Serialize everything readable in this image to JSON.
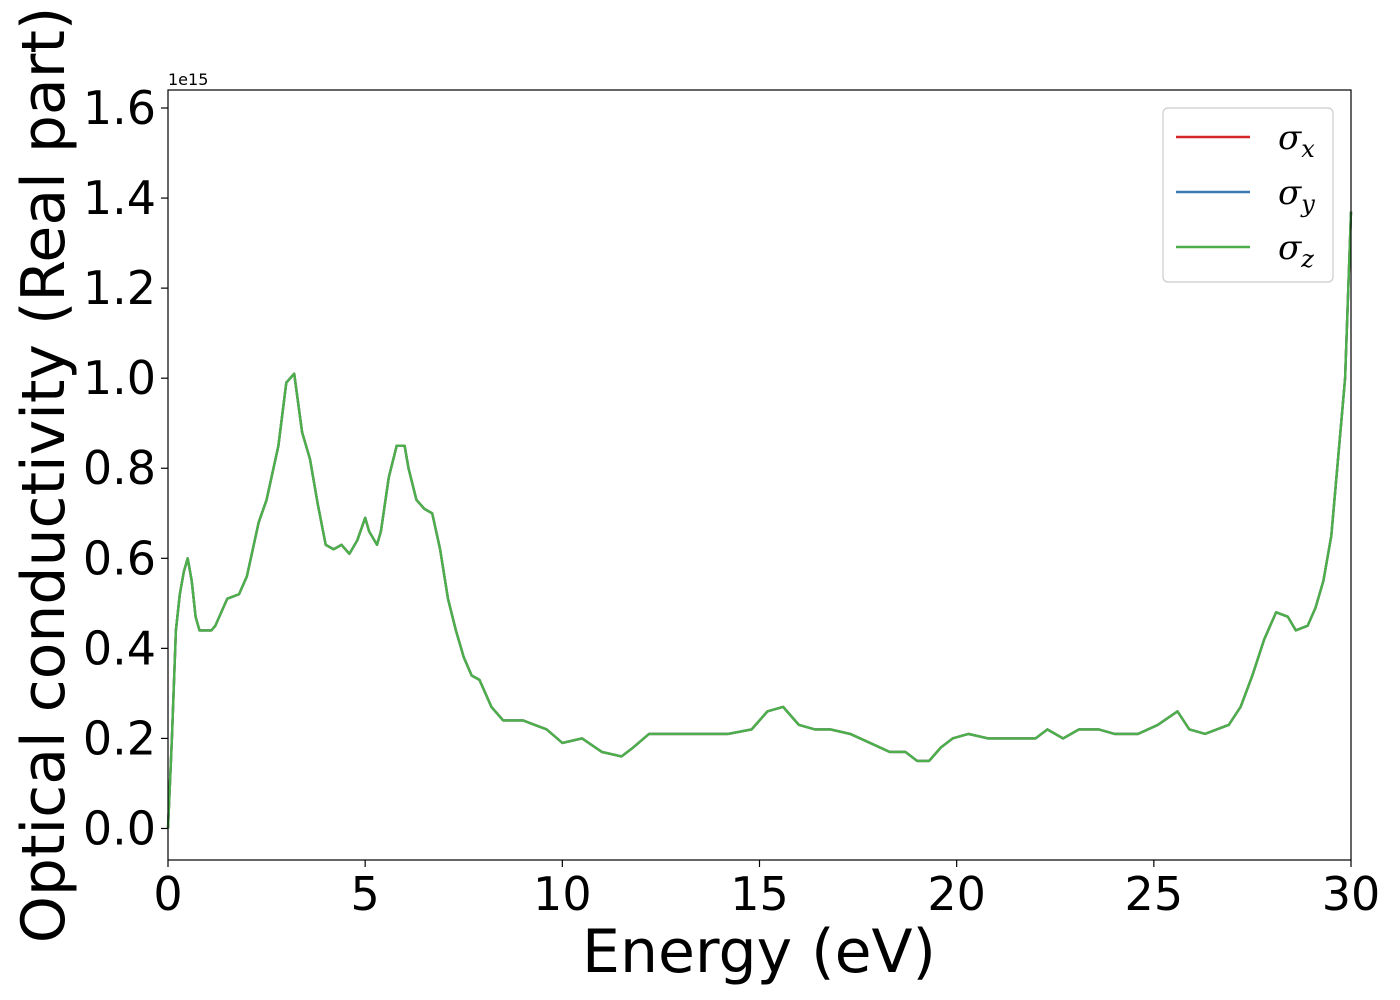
{
  "chart_data": {
    "type": "line",
    "xlabel": "Energy (eV)",
    "ylabel": "Optical conductivity (Real part)",
    "y_offset_text": "1e15",
    "xlim": [
      0,
      30
    ],
    "ylim": [
      -0.07,
      1.64
    ],
    "x_ticks": [
      0,
      5,
      10,
      15,
      20,
      25,
      30
    ],
    "y_ticks": [
      0.0,
      0.2,
      0.4,
      0.6,
      0.8,
      1.0,
      1.2,
      1.4,
      1.6
    ],
    "x_tick_labels": [
      "0",
      "5",
      "10",
      "15",
      "20",
      "25",
      "30"
    ],
    "y_tick_labels": [
      "0.0",
      "0.2",
      "0.4",
      "0.6",
      "0.8",
      "1.0",
      "1.2",
      "1.4",
      "1.6"
    ],
    "legend_position": "top-right",
    "grid": false,
    "x": [
      0.0,
      0.1,
      0.2,
      0.3,
      0.4,
      0.5,
      0.6,
      0.7,
      0.8,
      0.9,
      1.0,
      1.1,
      1.2,
      1.5,
      1.8,
      2.0,
      2.3,
      2.5,
      2.8,
      3.0,
      3.2,
      3.4,
      3.6,
      3.8,
      4.0,
      4.2,
      4.4,
      4.6,
      4.8,
      5.0,
      5.1,
      5.3,
      5.4,
      5.6,
      5.8,
      6.0,
      6.1,
      6.3,
      6.5,
      6.7,
      6.9,
      7.1,
      7.3,
      7.5,
      7.7,
      7.9,
      8.2,
      8.5,
      9.0,
      9.3,
      9.6,
      10.0,
      10.5,
      11.0,
      11.5,
      11.8,
      12.2,
      12.6,
      13.0,
      13.4,
      13.8,
      14.2,
      14.8,
      15.2,
      15.6,
      16.0,
      16.4,
      16.8,
      17.3,
      17.8,
      18.3,
      18.7,
      19.0,
      19.3,
      19.6,
      19.9,
      20.3,
      20.8,
      21.3,
      21.7,
      22.0,
      22.3,
      22.7,
      23.1,
      23.6,
      24.0,
      24.6,
      25.1,
      25.6,
      25.9,
      26.3,
      26.6,
      26.9,
      27.2,
      27.5,
      27.8,
      28.1,
      28.4,
      28.6,
      28.9,
      29.1,
      29.3,
      29.5,
      29.7,
      29.85,
      30.0
    ],
    "series": [
      {
        "name": "σx",
        "color": "#d62728",
        "values": [
          0.0,
          0.2,
          0.44,
          0.52,
          0.57,
          0.6,
          0.55,
          0.47,
          0.44,
          0.44,
          0.44,
          0.44,
          0.45,
          0.51,
          0.52,
          0.56,
          0.68,
          0.73,
          0.85,
          0.99,
          1.01,
          0.88,
          0.82,
          0.72,
          0.63,
          0.62,
          0.63,
          0.61,
          0.64,
          0.69,
          0.66,
          0.63,
          0.66,
          0.78,
          0.85,
          0.85,
          0.8,
          0.73,
          0.71,
          0.7,
          0.62,
          0.51,
          0.44,
          0.38,
          0.34,
          0.33,
          0.27,
          0.24,
          0.24,
          0.23,
          0.22,
          0.19,
          0.2,
          0.17,
          0.16,
          0.18,
          0.21,
          0.21,
          0.21,
          0.21,
          0.21,
          0.21,
          0.22,
          0.26,
          0.27,
          0.23,
          0.22,
          0.22,
          0.21,
          0.19,
          0.17,
          0.17,
          0.15,
          0.15,
          0.18,
          0.2,
          0.21,
          0.2,
          0.2,
          0.2,
          0.2,
          0.22,
          0.2,
          0.22,
          0.22,
          0.21,
          0.21,
          0.23,
          0.26,
          0.22,
          0.21,
          0.22,
          0.23,
          0.27,
          0.34,
          0.42,
          0.48,
          0.47,
          0.44,
          0.45,
          0.49,
          0.55,
          0.65,
          0.85,
          1.0,
          1.37
        ]
      },
      {
        "name": "σy",
        "color": "#3a78b0",
        "values": [
          0.0,
          0.2,
          0.44,
          0.52,
          0.57,
          0.6,
          0.55,
          0.47,
          0.44,
          0.44,
          0.44,
          0.44,
          0.45,
          0.51,
          0.52,
          0.56,
          0.68,
          0.73,
          0.85,
          0.99,
          1.01,
          0.88,
          0.82,
          0.72,
          0.63,
          0.62,
          0.63,
          0.61,
          0.64,
          0.69,
          0.66,
          0.63,
          0.66,
          0.78,
          0.85,
          0.85,
          0.8,
          0.73,
          0.71,
          0.7,
          0.62,
          0.51,
          0.44,
          0.38,
          0.34,
          0.33,
          0.27,
          0.24,
          0.24,
          0.23,
          0.22,
          0.19,
          0.2,
          0.17,
          0.16,
          0.18,
          0.21,
          0.21,
          0.21,
          0.21,
          0.21,
          0.21,
          0.22,
          0.26,
          0.27,
          0.23,
          0.22,
          0.22,
          0.21,
          0.19,
          0.17,
          0.17,
          0.15,
          0.15,
          0.18,
          0.2,
          0.21,
          0.2,
          0.2,
          0.2,
          0.2,
          0.22,
          0.2,
          0.22,
          0.22,
          0.21,
          0.21,
          0.23,
          0.26,
          0.22,
          0.21,
          0.22,
          0.23,
          0.27,
          0.34,
          0.42,
          0.48,
          0.47,
          0.44,
          0.45,
          0.49,
          0.55,
          0.65,
          0.85,
          1.0,
          1.37
        ]
      },
      {
        "name": "σz",
        "color": "#4daf4a",
        "values": [
          0.0,
          0.2,
          0.44,
          0.52,
          0.57,
          0.6,
          0.55,
          0.47,
          0.44,
          0.44,
          0.44,
          0.44,
          0.45,
          0.51,
          0.52,
          0.56,
          0.68,
          0.73,
          0.85,
          0.99,
          1.01,
          0.88,
          0.82,
          0.72,
          0.63,
          0.62,
          0.63,
          0.61,
          0.64,
          0.69,
          0.66,
          0.63,
          0.66,
          0.78,
          0.85,
          0.85,
          0.8,
          0.73,
          0.71,
          0.7,
          0.62,
          0.51,
          0.44,
          0.38,
          0.34,
          0.33,
          0.27,
          0.24,
          0.24,
          0.23,
          0.22,
          0.19,
          0.2,
          0.17,
          0.16,
          0.18,
          0.21,
          0.21,
          0.21,
          0.21,
          0.21,
          0.21,
          0.22,
          0.26,
          0.27,
          0.23,
          0.22,
          0.22,
          0.21,
          0.19,
          0.17,
          0.17,
          0.15,
          0.15,
          0.18,
          0.2,
          0.21,
          0.2,
          0.2,
          0.2,
          0.2,
          0.22,
          0.2,
          0.22,
          0.22,
          0.21,
          0.21,
          0.23,
          0.26,
          0.22,
          0.21,
          0.22,
          0.23,
          0.27,
          0.34,
          0.42,
          0.48,
          0.47,
          0.44,
          0.45,
          0.49,
          0.55,
          0.65,
          0.85,
          1.0,
          1.37
        ]
      }
    ],
    "legend": [
      {
        "symbol": "σ",
        "subscript": "x",
        "color": "#d62728"
      },
      {
        "symbol": "σ",
        "subscript": "y",
        "color": "#3a78b0"
      },
      {
        "symbol": "σ",
        "subscript": "z",
        "color": "#4daf4a"
      }
    ]
  }
}
